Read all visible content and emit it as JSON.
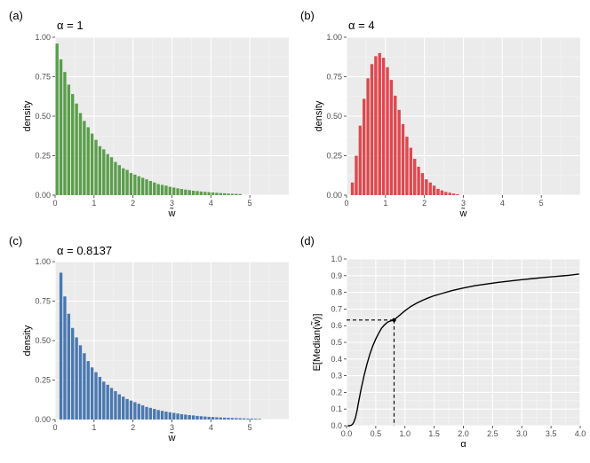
{
  "chart_data": [
    {
      "panel": "(a)",
      "type": "bar",
      "title": "α = 1",
      "xlabel": "w̃",
      "ylabel": "density",
      "color": "#5A9E4B",
      "xlim": [
        0,
        6
      ],
      "ylim": [
        0,
        1.0
      ],
      "xticks": [
        "0",
        "1",
        "2",
        "3",
        "4",
        "5"
      ],
      "yticks": [
        "0.00",
        "0.25",
        "0.50",
        "0.75",
        "1.00"
      ],
      "bin_width": 0.1,
      "x": [
        0.05,
        0.15,
        0.25,
        0.35,
        0.45,
        0.55,
        0.65,
        0.75,
        0.85,
        0.95,
        1.05,
        1.15,
        1.25,
        1.35,
        1.45,
        1.55,
        1.65,
        1.75,
        1.85,
        1.95,
        2.05,
        2.15,
        2.25,
        2.35,
        2.45,
        2.55,
        2.65,
        2.75,
        2.85,
        2.95,
        3.05,
        3.15,
        3.25,
        3.35,
        3.45,
        3.55,
        3.65,
        3.75,
        3.85,
        3.95,
        4.05,
        4.15,
        4.25,
        4.35,
        4.45,
        4.55,
        4.65,
        4.75
      ],
      "values": [
        0.96,
        0.86,
        0.78,
        0.7,
        0.64,
        0.58,
        0.52,
        0.47,
        0.43,
        0.39,
        0.35,
        0.31,
        0.29,
        0.26,
        0.24,
        0.21,
        0.19,
        0.17,
        0.16,
        0.14,
        0.13,
        0.12,
        0.11,
        0.1,
        0.09,
        0.08,
        0.07,
        0.065,
        0.06,
        0.053,
        0.048,
        0.043,
        0.039,
        0.035,
        0.032,
        0.028,
        0.026,
        0.023,
        0.021,
        0.019,
        0.017,
        0.015,
        0.013,
        0.012,
        0.01,
        0.009,
        0.008,
        0.007
      ]
    },
    {
      "panel": "(b)",
      "type": "bar",
      "title": "α = 4",
      "xlabel": "w̃",
      "ylabel": "density",
      "color": "#E0474C",
      "xlim": [
        0,
        6
      ],
      "ylim": [
        0,
        1.0
      ],
      "xticks": [
        "0",
        "1",
        "2",
        "3",
        "4",
        "5"
      ],
      "yticks": [
        "0.00",
        "0.25",
        "0.50",
        "0.75",
        "1.00"
      ],
      "bin_width": 0.1,
      "x": [
        0.15,
        0.25,
        0.35,
        0.45,
        0.55,
        0.65,
        0.75,
        0.85,
        0.95,
        1.05,
        1.15,
        1.25,
        1.35,
        1.45,
        1.55,
        1.65,
        1.75,
        1.85,
        1.95,
        2.05,
        2.15,
        2.25,
        2.35,
        2.45,
        2.55,
        2.65,
        2.75,
        2.85
      ],
      "values": [
        0.08,
        0.25,
        0.44,
        0.61,
        0.74,
        0.83,
        0.88,
        0.9,
        0.87,
        0.81,
        0.73,
        0.63,
        0.54,
        0.45,
        0.37,
        0.3,
        0.23,
        0.18,
        0.14,
        0.1,
        0.08,
        0.06,
        0.04,
        0.03,
        0.02,
        0.015,
        0.01,
        0.006
      ]
    },
    {
      "panel": "(c)",
      "type": "bar",
      "title": "α = 0.8137",
      "xlabel": "w̃",
      "ylabel": "density",
      "color": "#4A78B0",
      "xlim": [
        0,
        6
      ],
      "ylim": [
        0,
        1.0
      ],
      "xticks": [
        "0",
        "1",
        "2",
        "3",
        "4",
        "5"
      ],
      "yticks": [
        "0.00",
        "0.25",
        "0.50",
        "0.75",
        "1.00"
      ],
      "bin_width": 0.1,
      "x": [
        0.15,
        0.25,
        0.35,
        0.45,
        0.55,
        0.65,
        0.75,
        0.85,
        0.95,
        1.05,
        1.15,
        1.25,
        1.35,
        1.45,
        1.55,
        1.65,
        1.75,
        1.85,
        1.95,
        2.05,
        2.15,
        2.25,
        2.35,
        2.45,
        2.55,
        2.65,
        2.75,
        2.85,
        2.95,
        3.05,
        3.15,
        3.25,
        3.35,
        3.45,
        3.55,
        3.65,
        3.75,
        3.85,
        3.95,
        4.05,
        4.15,
        4.25,
        4.35,
        4.45,
        4.55,
        4.65,
        4.75,
        4.85,
        4.95,
        5.05,
        5.15,
        5.25
      ],
      "values": [
        0.93,
        0.78,
        0.67,
        0.58,
        0.52,
        0.47,
        0.42,
        0.37,
        0.33,
        0.3,
        0.27,
        0.24,
        0.22,
        0.2,
        0.18,
        0.16,
        0.145,
        0.13,
        0.12,
        0.11,
        0.1,
        0.09,
        0.08,
        0.074,
        0.067,
        0.06,
        0.055,
        0.05,
        0.046,
        0.042,
        0.038,
        0.034,
        0.031,
        0.028,
        0.026,
        0.023,
        0.021,
        0.019,
        0.017,
        0.016,
        0.014,
        0.013,
        0.012,
        0.011,
        0.01,
        0.009,
        0.008,
        0.007,
        0.006,
        0.006,
        0.005,
        0.004
      ]
    },
    {
      "panel": "(d)",
      "type": "line",
      "title": "",
      "xlabel": "α",
      "ylabel": "E[Median(w̃)]",
      "color": "#000000",
      "xlim": [
        0,
        4.0
      ],
      "ylim": [
        0,
        1.0
      ],
      "xticks": [
        "0.0",
        "0.5",
        "1.0",
        "1.5",
        "2.0",
        "2.5",
        "3.0",
        "3.5",
        "4.0"
      ],
      "yticks": [
        "0.0",
        "0.1",
        "0.2",
        "0.3",
        "0.4",
        "0.5",
        "0.6",
        "0.7",
        "0.8",
        "0.9",
        "1.0"
      ],
      "x": [
        0.02,
        0.05,
        0.08,
        0.1,
        0.12,
        0.15,
        0.18,
        0.2,
        0.25,
        0.3,
        0.35,
        0.4,
        0.45,
        0.5,
        0.55,
        0.6,
        0.65,
        0.7,
        0.75,
        0.8137,
        0.9,
        1.0,
        1.1,
        1.2,
        1.3,
        1.4,
        1.5,
        1.6,
        1.8,
        2.0,
        2.2,
        2.4,
        2.6,
        2.8,
        3.0,
        3.2,
        3.4,
        3.6,
        3.8,
        3.98
      ],
      "values": [
        0.0,
        0.0,
        0.003,
        0.008,
        0.018,
        0.045,
        0.09,
        0.13,
        0.22,
        0.3,
        0.37,
        0.43,
        0.48,
        0.52,
        0.555,
        0.585,
        0.605,
        0.62,
        0.628,
        0.634,
        0.66,
        0.69,
        0.715,
        0.735,
        0.752,
        0.767,
        0.78,
        0.79,
        0.81,
        0.826,
        0.84,
        0.85,
        0.86,
        0.868,
        0.876,
        0.883,
        0.89,
        0.896,
        0.902,
        0.91
      ],
      "annotation": {
        "x": 0.8137,
        "y": 0.634,
        "style": "dashed guide lines to both axes"
      }
    }
  ]
}
